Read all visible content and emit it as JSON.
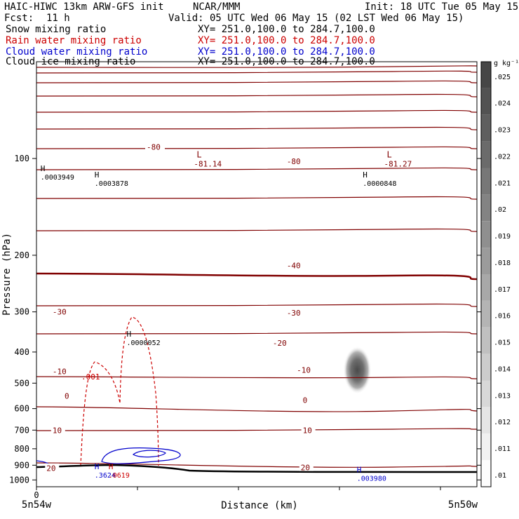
{
  "header": {
    "model": "HAIC-HIWC 13km ARW-GFS init",
    "org": "NCAR/MMM",
    "init": "Init: 18 UTC Tue 05 May 15",
    "fcst_label": "Fcst:",
    "fcst_value": "11 h",
    "valid": "Valid: 05 UTC Wed 06 May 15 (02 LST Wed 06 May 15)"
  },
  "fields": [
    {
      "name": "Snow mixing ratio",
      "xy": "XY= 251.0,100.0 to 284.7,100.0",
      "color": "#000000"
    },
    {
      "name": "Rain water mixing ratio",
      "xy": "XY= 251.0,100.0 to 284.7,100.0",
      "color": "#cc0000"
    },
    {
      "name": "Cloud water mixing ratio",
      "xy": "XY= 251.0,100.0 to 284.7,100.0",
      "color": "#0000cc"
    },
    {
      "name": "Cloud ice mixing ratio",
      "xy": "XY= 251.0,100.0 to 284.7,100.0",
      "color": "#000000"
    }
  ],
  "chart_data": {
    "type": "line",
    "xlabel": "Distance (km)",
    "ylabel": "Pressure (hPa)",
    "y_scale": "log",
    "ylim": [
      1050,
      50
    ],
    "xlim": [
      0,
      220
    ],
    "x_tick_labels": [
      "0"
    ],
    "x_endpoint_labels": {
      "left": "5n54w",
      "right": "5n50w"
    },
    "y_ticks": [
      100,
      200,
      300,
      400,
      500,
      600,
      700,
      800,
      900,
      1000
    ],
    "temperature_contours": {
      "color": "#800000",
      "zero_line_bold": true,
      "labels": [
        {
          "text": "-80",
          "x": 55,
          "p": 92
        },
        {
          "text": "-80",
          "x": 125,
          "p": 102
        },
        {
          "text": "-40",
          "x": 125,
          "p": 215
        },
        {
          "text": "-30",
          "x": 8,
          "p": 300
        },
        {
          "text": "-30",
          "x": 125,
          "p": 302
        },
        {
          "text": "-20",
          "x": 118,
          "p": 375
        },
        {
          "text": "-10",
          "x": 8,
          "p": 460
        },
        {
          "text": "-10",
          "x": 130,
          "p": 455
        },
        {
          "text": "0",
          "x": 14,
          "p": 548
        },
        {
          "text": "0",
          "x": 133,
          "p": 565
        },
        {
          "text": "10",
          "x": 8,
          "p": 700
        },
        {
          "text": "10",
          "x": 133,
          "p": 700
        },
        {
          "text": "20",
          "x": 5,
          "p": 920
        },
        {
          "text": "20",
          "x": 132,
          "p": 915
        }
      ],
      "extrema": [
        {
          "type": "L",
          "value": "-81.14",
          "x": 80,
          "p": 92
        },
        {
          "type": "L",
          "value": "-81.27",
          "x": 175,
          "p": 92
        }
      ]
    },
    "snow_extrema": [
      {
        "type": "H",
        "value": ".0003949",
        "x": 2,
        "p": 110
      },
      {
        "type": "H",
        "value": ".0003878",
        "x": 29,
        "p": 115
      },
      {
        "type": "H",
        "value": ".0000848",
        "x": 163,
        "p": 115
      },
      {
        "type": "H",
        "value": ".0000052",
        "x": 45,
        "p": 360
      }
    ],
    "rain_contour": {
      "label": ".001",
      "color": "#cc0000",
      "dashed": true
    },
    "cloud_water_extrema": [
      {
        "type": "H",
        "value": ".3624",
        "x": 29,
        "p": 975,
        "color": "#0000cc"
      },
      {
        "type": "H",
        "value": ".003980",
        "x": 160,
        "p": 995,
        "color": "#0000cc"
      }
    ],
    "rain_extrema": [
      {
        "type": "H",
        "value": ".0619",
        "x": 36,
        "p": 975,
        "color": "#cc0000"
      }
    ],
    "cloud_ice_shading": {
      "center_x": 162,
      "center_p": 460,
      "max": 0.025
    },
    "colorbar": {
      "unit": "g kg⁻¹",
      "labels": [
        ".025",
        ".024",
        ".023",
        ".022",
        ".021",
        ".02",
        ".019",
        ".018",
        ".017",
        ".016",
        ".015",
        ".014",
        ".013",
        ".012",
        ".011",
        ".01"
      ]
    }
  }
}
